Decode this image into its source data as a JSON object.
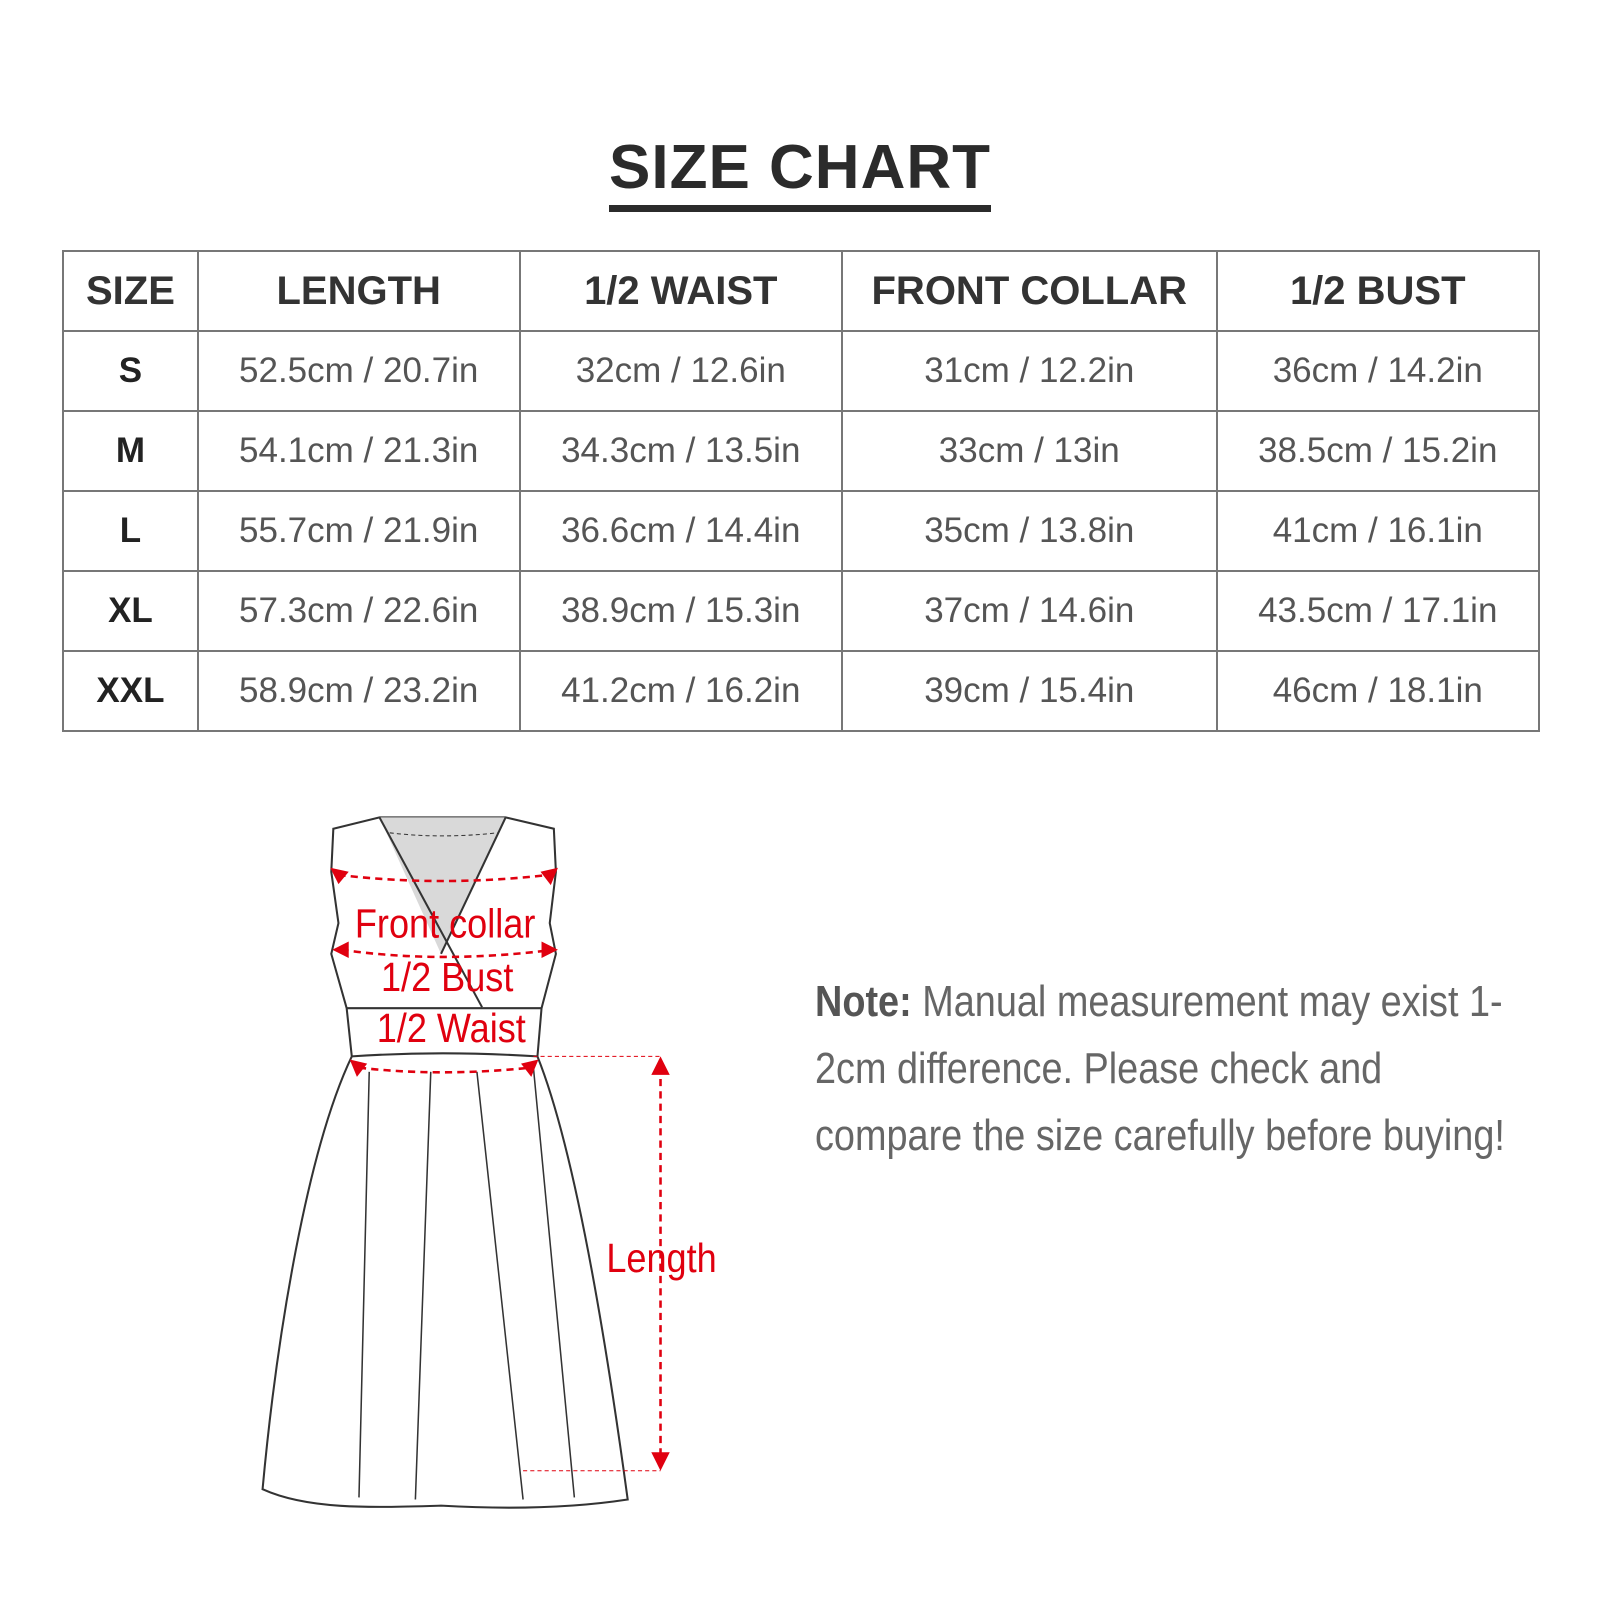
{
  "title": "SIZE CHART",
  "table": {
    "headers": [
      "SIZE",
      "LENGTH",
      "1/2 WAIST",
      "FRONT COLLAR",
      "1/2 BUST"
    ],
    "rows": [
      [
        "S",
        "52.5cm / 20.7in",
        "32cm / 12.6in",
        "31cm / 12.2in",
        "36cm / 14.2in"
      ],
      [
        "M",
        "54.1cm / 21.3in",
        "34.3cm / 13.5in",
        "33cm / 13in",
        "38.5cm / 15.2in"
      ],
      [
        "L",
        "55.7cm / 21.9in",
        "36.6cm / 14.4in",
        "35cm / 13.8in",
        "41cm / 16.1in"
      ],
      [
        "XL",
        "57.3cm / 22.6in",
        "38.9cm / 15.3in",
        "37cm / 14.6in",
        "43.5cm / 17.1in"
      ],
      [
        "XXL",
        "58.9cm / 23.2in",
        "41.2cm / 16.2in",
        "39cm / 15.4in",
        "46cm / 18.1in"
      ]
    ]
  },
  "diagram": {
    "labels": {
      "front_collar": "Front collar",
      "bust": "1/2 Bust",
      "waist": "1/2 Waist",
      "length": "Length"
    },
    "accent_color": "#e0000f"
  },
  "note": {
    "label": "Note:",
    "text": " Manual measurement may exist 1-2cm difference. Please check and compare the size carefully before buying!"
  }
}
